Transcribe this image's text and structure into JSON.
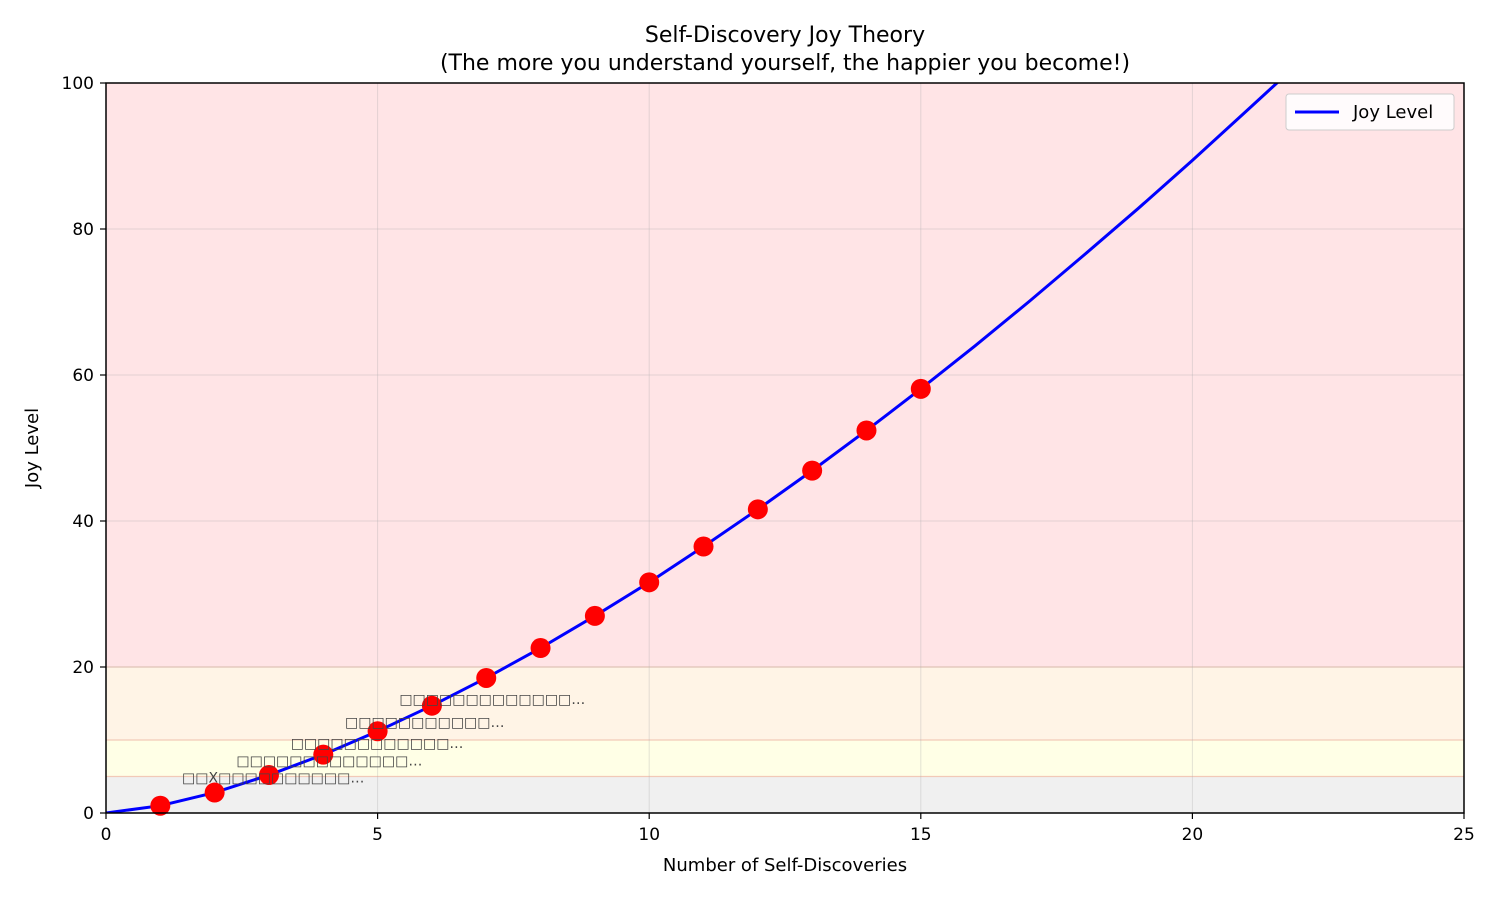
{
  "chart_data": {
    "type": "line",
    "title": "Self-Discovery Joy Theory",
    "subtitle": "(The more you understand yourself, the happier you become!)",
    "xlabel": "Number of Self-Discoveries",
    "ylabel": "Joy Level",
    "xlim": [
      0,
      25
    ],
    "ylim": [
      0,
      100
    ],
    "x_ticks": [
      0,
      5,
      10,
      15,
      20,
      25
    ],
    "y_ticks": [
      0,
      20,
      40,
      60,
      80,
      100
    ],
    "grid": true,
    "legend_placement": "top-right",
    "series": [
      {
        "name": "Joy Level",
        "color": "#0000ff",
        "curve": {
          "x": [
            0,
            1,
            2,
            3,
            4,
            5,
            6,
            7,
            8,
            9,
            10,
            11,
            12,
            13,
            14,
            15,
            16,
            17,
            18,
            19,
            20,
            21,
            21.6
          ],
          "y": [
            0,
            1.0,
            2.8,
            5.2,
            8.0,
            11.2,
            14.7,
            18.5,
            22.6,
            27.0,
            31.6,
            36.5,
            41.6,
            46.9,
            52.4,
            58.1,
            64.0,
            70.1,
            76.4,
            82.8,
            89.4,
            96.2,
            100.3
          ]
        }
      }
    ],
    "markers": {
      "color": "#ff0000",
      "x": [
        1,
        2,
        3,
        4,
        5,
        6,
        7,
        8,
        9,
        10,
        11,
        12,
        13,
        14,
        15
      ],
      "y": [
        1.0,
        2.8,
        5.2,
        8.0,
        11.2,
        14.7,
        18.5,
        22.6,
        27.0,
        31.6,
        36.5,
        41.6,
        46.9,
        52.4,
        58.1
      ]
    },
    "bands": [
      {
        "from": 0,
        "to": 5,
        "color": "#f0f0f0"
      },
      {
        "from": 5,
        "to": 10,
        "color": "#ffffe6"
      },
      {
        "from": 10,
        "to": 20,
        "color": "#fff4e6"
      },
      {
        "from": 20,
        "to": 100,
        "color": "#ffe4e6"
      }
    ],
    "annotations": [
      {
        "text": "□□X□□□□□□□□□□…",
        "x": 1.4,
        "y": 4.2
      },
      {
        "text": "□□□□□□□□□□□□□…",
        "x": 2.4,
        "y": 6.5
      },
      {
        "text": "□□□□□□□□□□□□…",
        "x": 3.4,
        "y": 8.9
      },
      {
        "text": "□□□□□□□□□□□…",
        "x": 4.4,
        "y": 11.8
      },
      {
        "text": "□□□□□□□□□□□□□…",
        "x": 5.4,
        "y": 14.9
      }
    ]
  }
}
